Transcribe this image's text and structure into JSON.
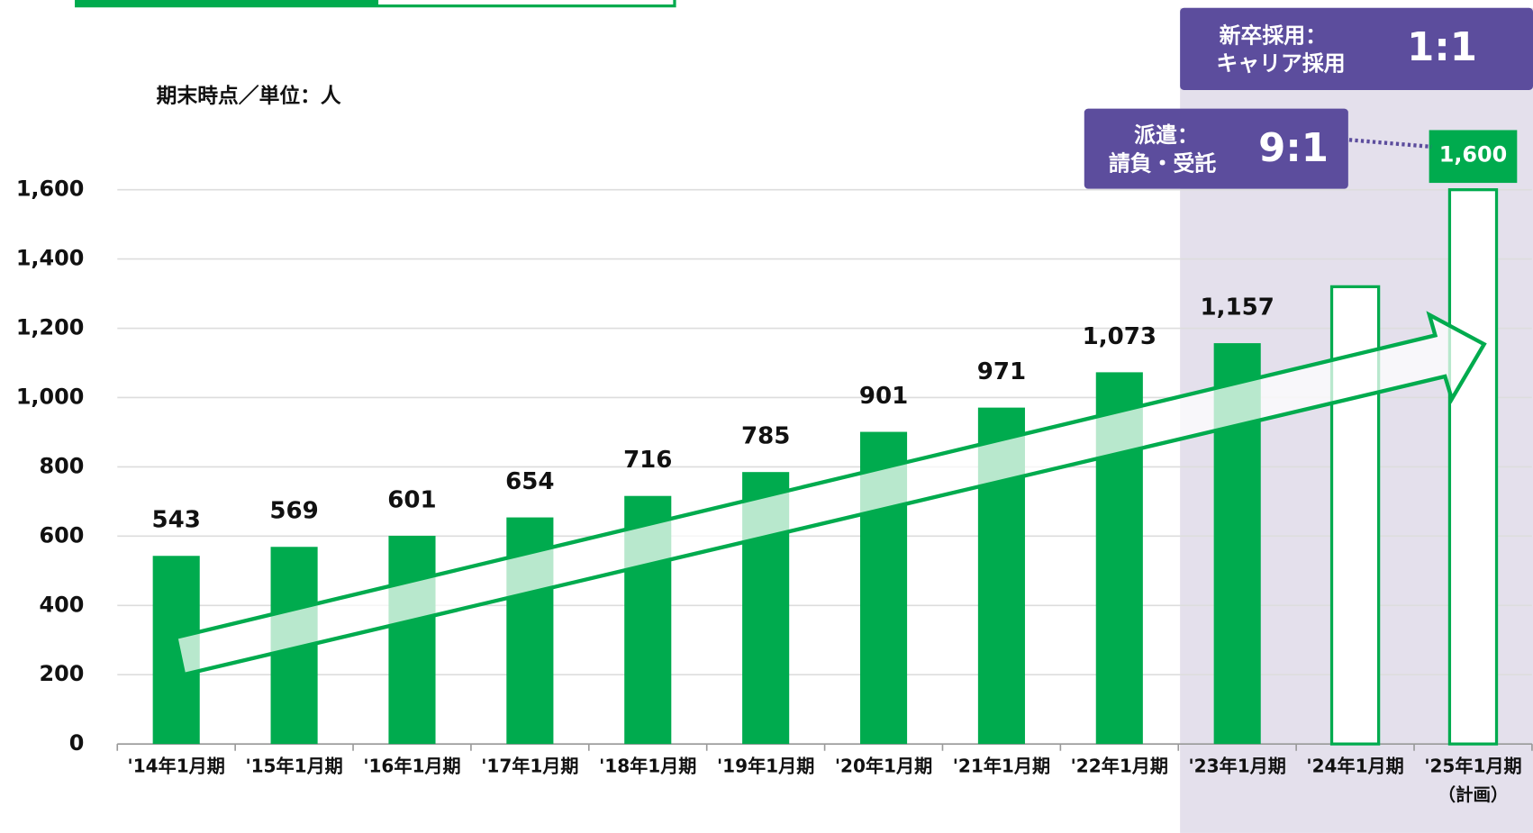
{
  "chart_data": {
    "type": "bar",
    "unit_note": "期末時点／単位：人",
    "categories": [
      "'14年1月期",
      "'15年1月期",
      "'16年1月期",
      "'17年1月期",
      "'18年1月期",
      "'19年1月期",
      "'20年1月期",
      "'21年1月期",
      "'22年1月期",
      "'23年1月期",
      "'24年1月期",
      "'25年1月期"
    ],
    "category_note": "（計画）",
    "series": [
      {
        "color": "#00ab4e",
        "hollow": false,
        "values": [
          543,
          569,
          601,
          654,
          716,
          785,
          901,
          971,
          1073,
          1157,
          null,
          null
        ],
        "value_labels": [
          "543",
          "569",
          "601",
          "654",
          "716",
          "785",
          "901",
          "971",
          "1,073",
          "1,157",
          null,
          null
        ]
      },
      {
        "color": "#00ab4e",
        "hollow": true,
        "values": [
          null,
          null,
          null,
          null,
          null,
          null,
          null,
          null,
          null,
          null,
          1320,
          1600
        ],
        "value_labels": [
          null,
          null,
          null,
          null,
          null,
          null,
          null,
          null,
          null,
          null,
          null,
          "1,600"
        ]
      }
    ],
    "ylim": [
      0,
      1600
    ],
    "yticks": [
      0,
      200,
      400,
      600,
      800,
      {
        "value": 1000,
        "label": "1,000"
      },
      {
        "value": 1200,
        "label": "1,200"
      },
      {
        "value": 1400,
        "label": "1,400"
      },
      {
        "value": 1600,
        "label": "1,600"
      }
    ],
    "grid": true,
    "callouts": [
      {
        "lines": [
          "新卒採用：",
          "キャリア採用"
        ],
        "ratio": "1:1"
      },
      {
        "lines": [
          "派遣：",
          "請負・受託"
        ],
        "ratio": "9:1"
      }
    ]
  }
}
